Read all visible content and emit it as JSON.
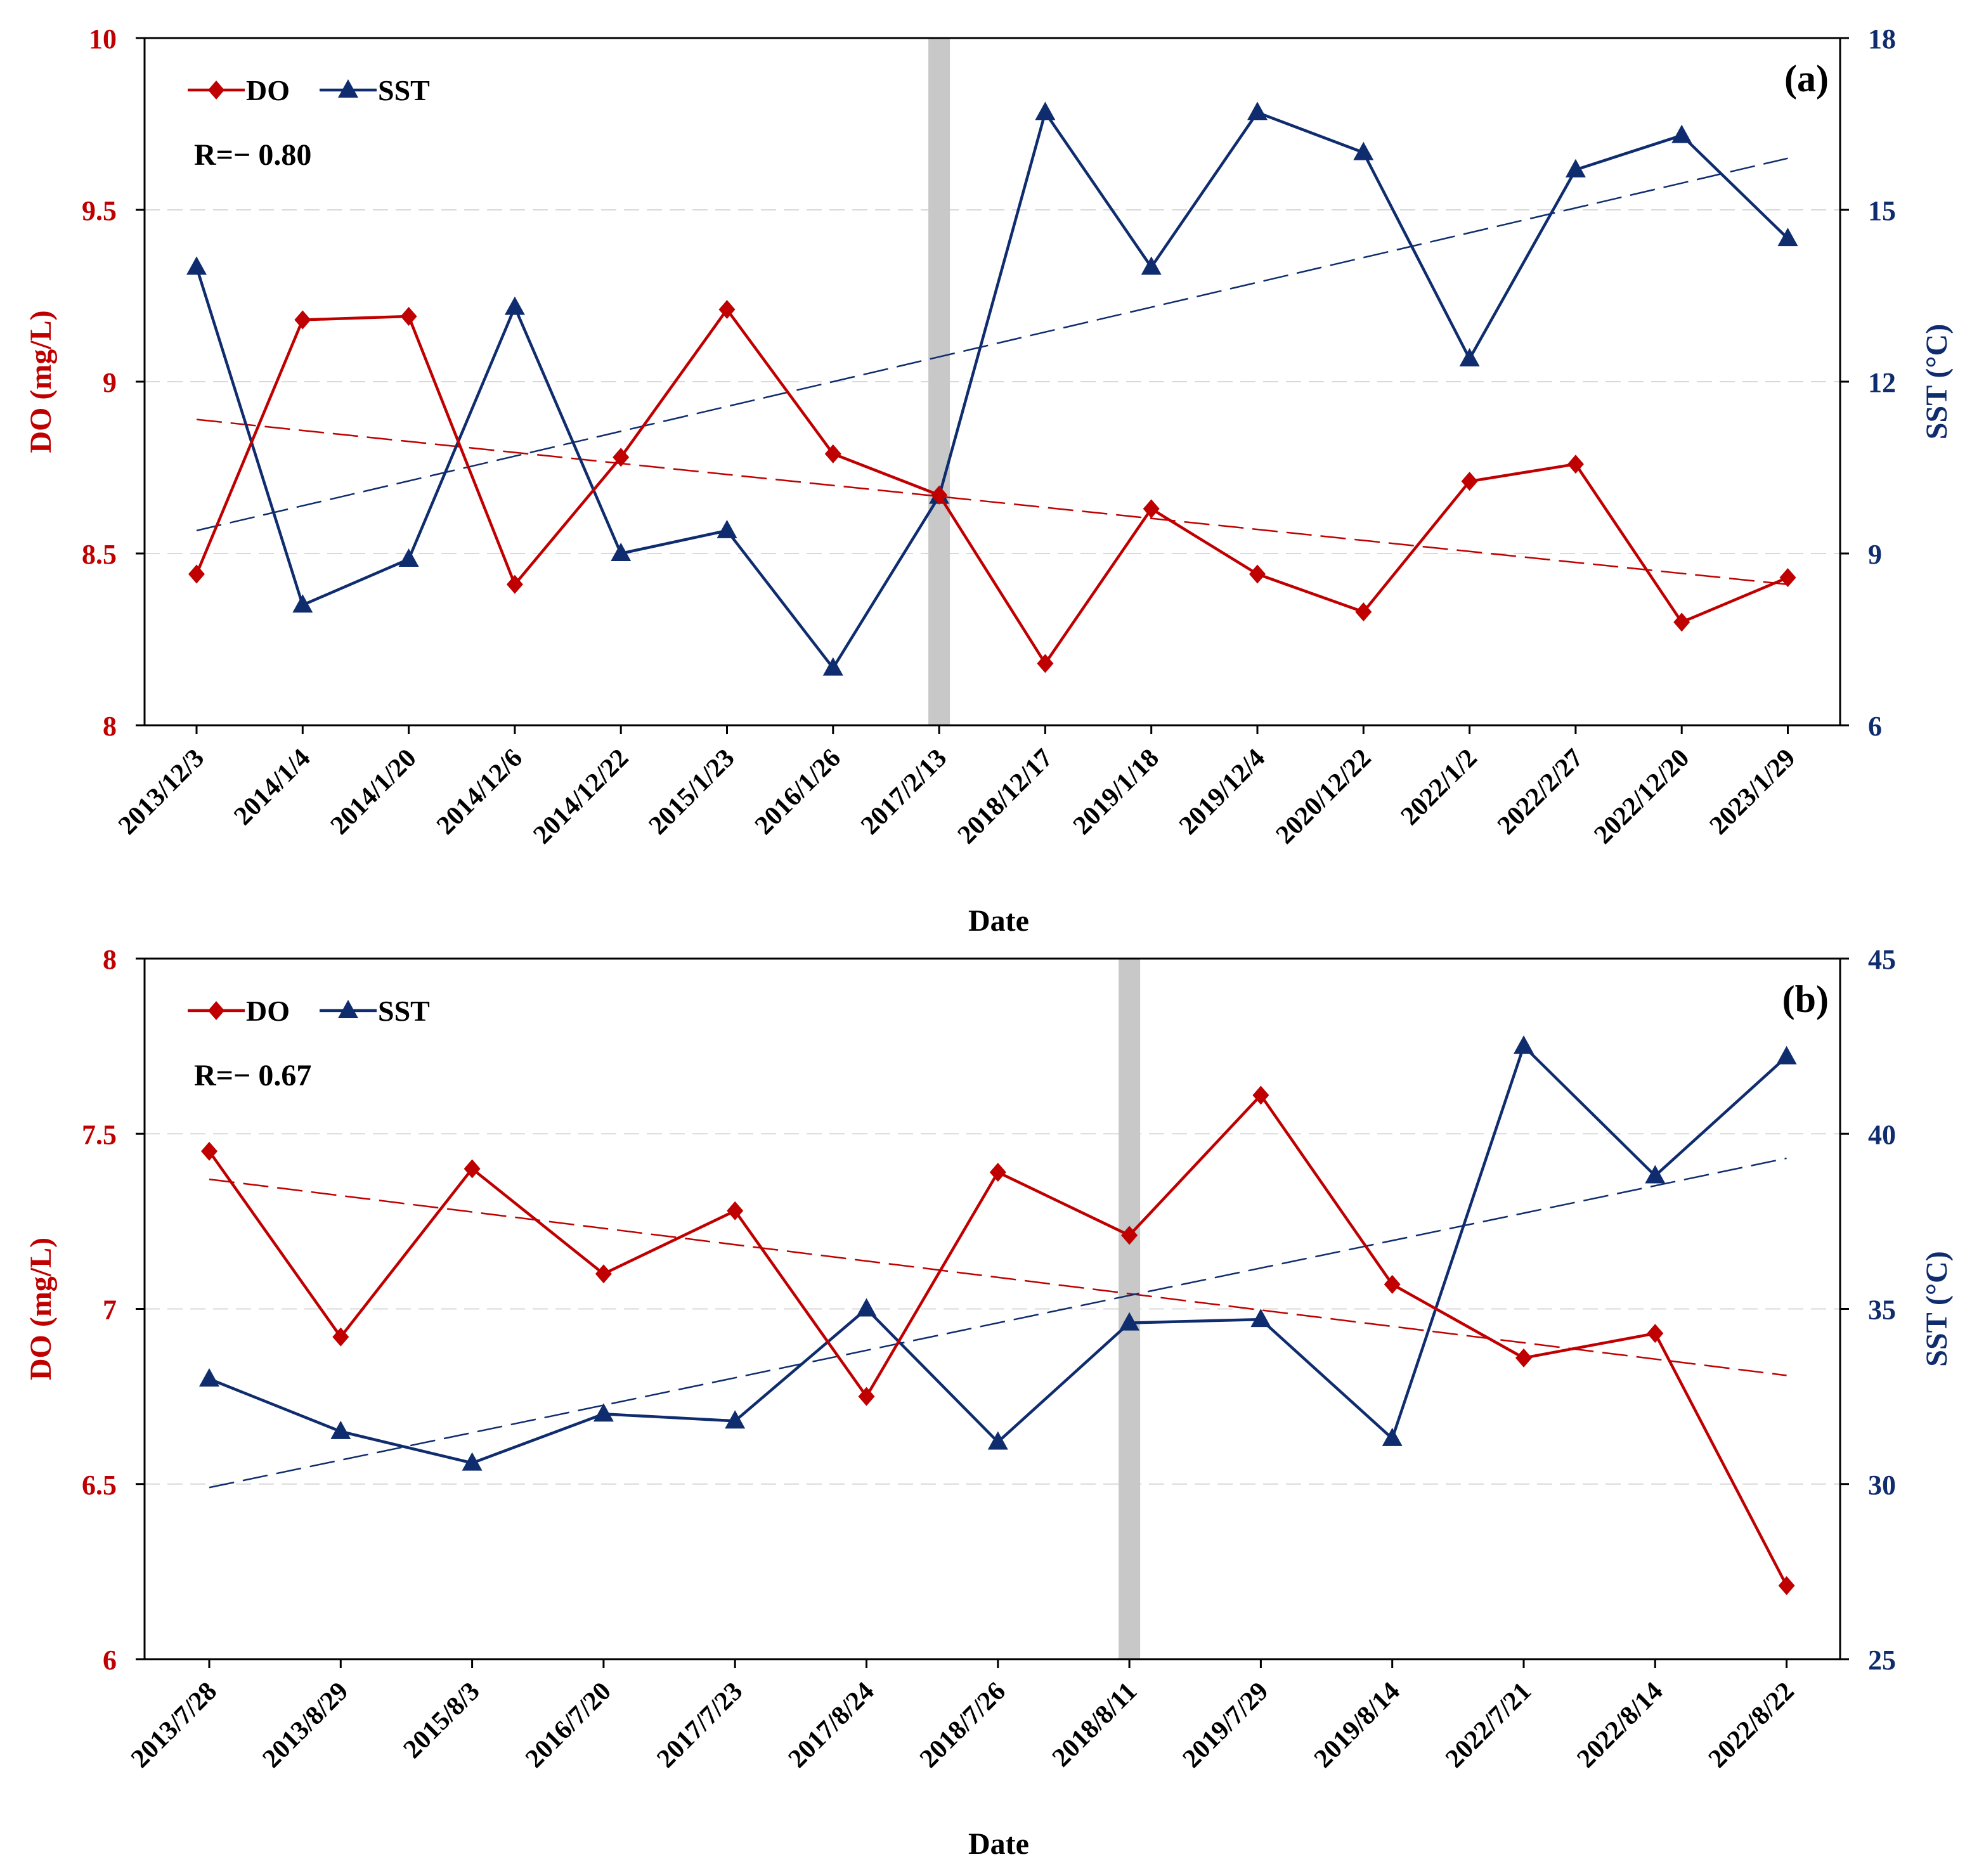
{
  "colors": {
    "do": "#C00000",
    "sst": "#0F2D6E",
    "highlight": "#C8C8C8",
    "grid": "#D9D9D9",
    "axis": "#000000"
  },
  "chart_data": [
    {
      "type": "line",
      "panel_label": "(a)",
      "correlation_label": "R=− 0.80",
      "xlabel": "Date",
      "ylabel_left": "DO (mg/L)",
      "ylabel_right": "SST (°C)",
      "ylim_left": [
        8,
        10
      ],
      "yticks_left": [
        "8",
        "8.5",
        "9",
        "9.5",
        "10"
      ],
      "ylim_right": [
        6,
        18
      ],
      "yticks_right": [
        "6",
        "9",
        "12",
        "15",
        "18"
      ],
      "categories": [
        "2013/12/3",
        "2014/1/4",
        "2014/1/20",
        "2014/12/6",
        "2014/12/22",
        "2015/1/23",
        "2016/1/26",
        "2017/2/13",
        "2018/12/17",
        "2019/1/18",
        "2019/12/4",
        "2020/12/22",
        "2022/1/2",
        "2022/2/27",
        "2022/12/20",
        "2023/1/29"
      ],
      "highlight_category_index": 7,
      "legend": [
        "DO",
        "SST"
      ],
      "series": [
        {
          "name": "DO",
          "axis": "left",
          "marker": "diamond",
          "values": [
            8.44,
            9.18,
            9.19,
            8.41,
            8.78,
            9.21,
            8.79,
            8.67,
            8.18,
            8.63,
            8.44,
            8.33,
            8.71,
            8.76,
            8.3,
            8.43
          ]
        },
        {
          "name": "SST",
          "axis": "right",
          "marker": "triangle",
          "values": [
            14.0,
            8.1,
            8.9,
            13.3,
            9.0,
            9.4,
            7.0,
            10.0,
            16.7,
            14.0,
            16.7,
            16.0,
            12.4,
            15.7,
            16.3,
            14.5
          ]
        }
      ],
      "trendlines": [
        {
          "series": "DO",
          "axis": "left",
          "start": 8.89,
          "end": 8.41
        },
        {
          "series": "SST",
          "axis": "right",
          "start": 9.4,
          "end": 15.9
        }
      ]
    },
    {
      "type": "line",
      "panel_label": "(b)",
      "correlation_label": "R=− 0.67",
      "xlabel": "Date",
      "ylabel_left": "DO (mg/L)",
      "ylabel_right": "SST (°C)",
      "ylim_left": [
        6,
        8
      ],
      "yticks_left": [
        "6",
        "6.5",
        "7",
        "7.5",
        "8"
      ],
      "ylim_right": [
        25,
        45
      ],
      "yticks_right": [
        "25",
        "30",
        "35",
        "40",
        "45"
      ],
      "categories": [
        "2013/7/28",
        "2013/8/29",
        "2015/8/3",
        "2016/7/20",
        "2017/7/23",
        "2017/8/24",
        "2018/7/26",
        "2018/8/11",
        "2019/7/29",
        "2019/8/14",
        "2022/7/21",
        "2022/8/14",
        "2022/8/22"
      ],
      "highlight_category_index": 7,
      "legend": [
        "DO",
        "SST"
      ],
      "series": [
        {
          "name": "DO",
          "axis": "left",
          "marker": "diamond",
          "values": [
            7.45,
            6.92,
            7.4,
            7.1,
            7.28,
            6.75,
            7.39,
            7.21,
            7.61,
            7.07,
            6.86,
            6.93,
            6.21
          ]
        },
        {
          "name": "SST",
          "axis": "right",
          "marker": "triangle",
          "values": [
            33.0,
            31.5,
            30.6,
            32.0,
            31.8,
            35.0,
            31.2,
            34.6,
            34.7,
            31.3,
            42.5,
            38.8,
            42.2
          ]
        }
      ],
      "trendlines": [
        {
          "series": "DO",
          "axis": "left",
          "start": 7.37,
          "end": 6.81
        },
        {
          "series": "SST",
          "axis": "right",
          "start": 29.9,
          "end": 39.3
        }
      ]
    }
  ]
}
